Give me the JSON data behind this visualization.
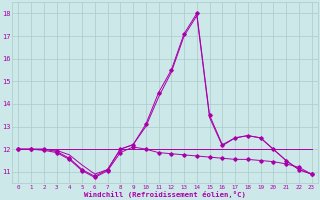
{
  "xlabel": "Windchill (Refroidissement éolien,°C)",
  "background_color": "#cce8e8",
  "grid_color": "#aacccc",
  "line_color": "#aa00aa",
  "x": [
    0,
    1,
    2,
    3,
    4,
    5,
    6,
    7,
    8,
    9,
    10,
    11,
    12,
    13,
    14,
    15,
    16,
    17,
    18,
    19,
    20,
    21,
    22,
    23
  ],
  "series": [
    [
      12.0,
      12.0,
      12.0,
      11.9,
      11.6,
      11.1,
      10.8,
      11.1,
      12.0,
      12.2,
      13.1,
      14.5,
      15.5,
      17.1,
      18.0,
      13.5,
      12.2,
      12.5,
      12.6,
      12.5,
      12.0,
      11.5,
      11.1,
      10.9
    ],
    [
      12.0,
      12.0,
      12.0,
      12.0,
      12.0,
      12.0,
      12.0,
      12.0,
      12.0,
      12.0,
      12.0,
      12.0,
      12.0,
      12.0,
      12.0,
      12.0,
      12.0,
      12.0,
      12.0,
      12.0,
      12.0,
      12.0,
      12.0,
      12.0
    ],
    [
      12.0,
      12.0,
      12.0,
      11.95,
      11.75,
      11.3,
      10.9,
      11.1,
      12.0,
      12.2,
      13.0,
      14.3,
      15.4,
      17.0,
      17.9,
      13.4,
      12.15,
      12.5,
      12.6,
      12.5,
      12.0,
      11.5,
      11.1,
      10.9
    ],
    [
      12.0,
      12.0,
      11.95,
      11.85,
      11.55,
      11.05,
      10.75,
      11.05,
      11.85,
      12.1,
      12.0,
      11.85,
      11.8,
      11.75,
      11.7,
      11.65,
      11.6,
      11.55,
      11.55,
      11.5,
      11.45,
      11.35,
      11.2,
      10.9
    ]
  ],
  "ylim": [
    10.5,
    18.5
  ],
  "yticks": [
    11,
    12,
    13,
    14,
    15,
    16,
    17,
    18
  ],
  "xlim": [
    -0.5,
    23.5
  ],
  "xticks": [
    0,
    1,
    2,
    3,
    4,
    5,
    6,
    7,
    8,
    9,
    10,
    11,
    12,
    13,
    14,
    15,
    16,
    17,
    18,
    19,
    20,
    21,
    22,
    23
  ]
}
